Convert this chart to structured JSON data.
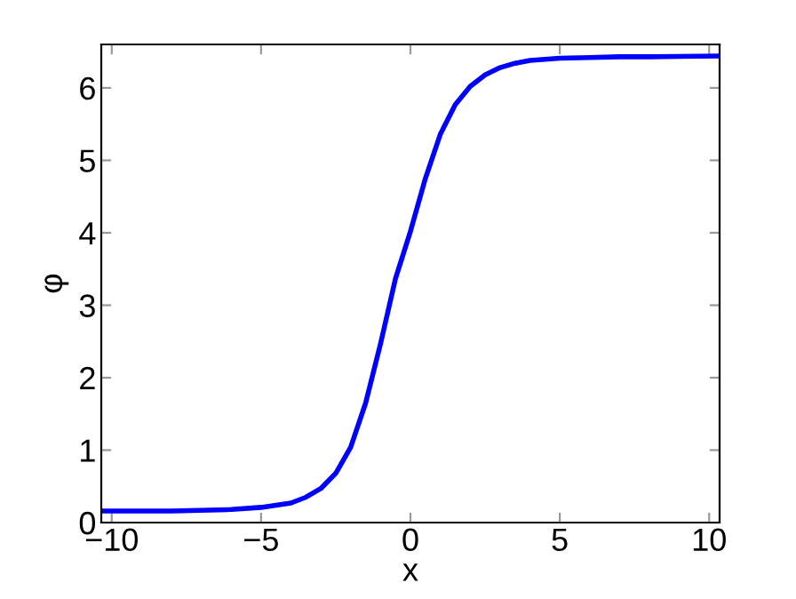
{
  "chart_data": {
    "type": "line",
    "xlabel": "x",
    "ylabel": "φ",
    "x": [
      -10.35,
      -8,
      -6,
      -5,
      -4,
      -3.5,
      -3,
      -2.5,
      -2,
      -1.5,
      -1,
      -0.5,
      0,
      0.5,
      1,
      1.5,
      2,
      2.5,
      3,
      3.5,
      4,
      5,
      6,
      7,
      8,
      10.35
    ],
    "series": [
      {
        "color": "#0000ff",
        "values": [
          0.16,
          0.16,
          0.18,
          0.21,
          0.27,
          0.35,
          0.47,
          0.68,
          1.04,
          1.65,
          2.47,
          3.37,
          4.02,
          4.75,
          5.36,
          5.77,
          6.02,
          6.18,
          6.28,
          6.34,
          6.38,
          6.41,
          6.42,
          6.43,
          6.43,
          6.44
        ]
      }
    ],
    "xlim": [
      -10.35,
      10.35
    ],
    "ylim": [
      0,
      6.6
    ],
    "xticks": [
      {
        "value": -10,
        "label": "−10"
      },
      {
        "value": -5,
        "label": "−5"
      },
      0,
      5,
      10
    ],
    "yticks": [
      0,
      1,
      2,
      3,
      4,
      5,
      6
    ],
    "grid": false,
    "legend": false,
    "marker": "none",
    "line_style": "solid"
  }
}
